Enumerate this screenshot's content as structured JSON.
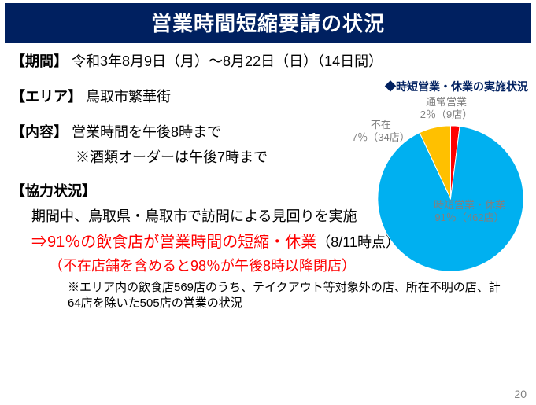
{
  "title": "営業時間短縮要請の状況",
  "period": {
    "label": "【期間】",
    "text": "令和3年8月9日（月）～8月22日（日）（14日間）"
  },
  "area": {
    "label": "【エリア】",
    "text": "鳥取市繁華街"
  },
  "content": {
    "label": "【内容】",
    "text": "営業時間を午後8時まで",
    "sub": "※酒類オーダーは午後7時まで"
  },
  "coop": {
    "label": "【協力状況】",
    "line1": "期間中、鳥取県・鳥取市で訪問による見回りを実施",
    "line2_red": "⇒91％の飲食店が営業時間の短縮・休業",
    "line2_black": "（8/11時点）",
    "line3": "（不在店舗を含めると98％が午後8時以降閉店）",
    "note": "※エリア内の飲食店569店のうち、テイクアウト等対象外の店、所在不明の店、計64店を除いた505店の営業の状況"
  },
  "chart": {
    "type": "pie",
    "title": "◆時短営業・休業の実施状況",
    "normal_label": "通常営業",
    "normal_value": "2％（9店）",
    "absent_label": "不在",
    "absent_value": "7％（34店）",
    "main_label": "時短営業・休業",
    "main_value": "91％（462店）",
    "slices": [
      {
        "name": "normal",
        "pct": 2,
        "color": "#ff0000"
      },
      {
        "name": "absent",
        "pct": 7,
        "color": "#ffc000"
      },
      {
        "name": "main",
        "pct": 91,
        "color": "#00b0f0"
      }
    ],
    "background": "#ffffff"
  },
  "pagenum": "20"
}
